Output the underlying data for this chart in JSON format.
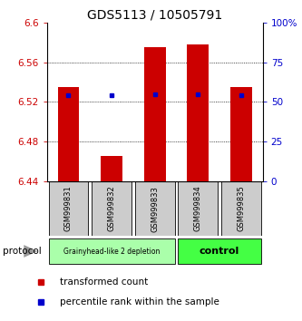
{
  "title": "GDS5113 / 10505791",
  "samples": [
    "GSM999831",
    "GSM999832",
    "GSM999833",
    "GSM999834",
    "GSM999835"
  ],
  "bar_bottoms": [
    6.44,
    6.44,
    6.44,
    6.44,
    6.44
  ],
  "bar_tops": [
    6.535,
    6.466,
    6.575,
    6.578,
    6.535
  ],
  "percentile_values": [
    6.527,
    6.527,
    6.528,
    6.528,
    6.527
  ],
  "ylim_min": 6.44,
  "ylim_max": 6.6,
  "yticks": [
    6.44,
    6.48,
    6.52,
    6.56,
    6.6
  ],
  "ytick_labels": [
    "6.44",
    "6.48",
    "6.52",
    "6.56",
    "6.6"
  ],
  "right_yticks": [
    0,
    25,
    50,
    75,
    100
  ],
  "right_ytick_labels": [
    "0",
    "25",
    "50",
    "75",
    "100%"
  ],
  "bar_color": "#cc0000",
  "percentile_color": "#0000cc",
  "groups": [
    {
      "label": "Grainyhead-like 2 depletion",
      "samples": [
        0,
        1,
        2
      ],
      "color": "#aaffaa"
    },
    {
      "label": "control",
      "samples": [
        3,
        4
      ],
      "color": "#44ff44"
    }
  ],
  "protocol_label": "protocol",
  "legend_items": [
    {
      "color": "#cc0000",
      "label": "transformed count"
    },
    {
      "color": "#0000cc",
      "label": "percentile rank within the sample"
    }
  ],
  "background_color": "#ffffff",
  "sample_box_color": "#cccccc",
  "title_fontsize": 10,
  "tick_fontsize": 7.5,
  "legend_fontsize": 7.5
}
